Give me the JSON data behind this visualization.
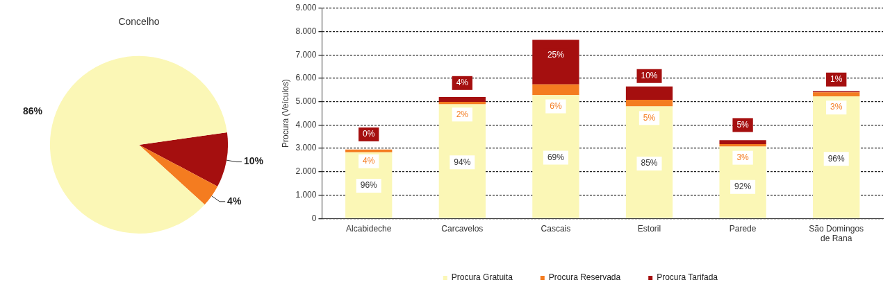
{
  "chart_data": [
    {
      "type": "pie",
      "title": "Concelho",
      "categories": [
        null,
        null,
        null
      ],
      "values": [
        10,
        4,
        86
      ],
      "colors": [
        "#a50f0f",
        "#f47c20",
        "#fbf7b6"
      ],
      "value_labels": [
        "10%",
        "4%",
        "86%"
      ],
      "legend": false
    },
    {
      "type": "bar",
      "stacked": true,
      "ylabel": "Procura (Veículos)",
      "categories": [
        "Alcabideche",
        "Carcavelos",
        "Cascais",
        "Estoril",
        "Parede",
        "São Domingos de Rana"
      ],
      "series": [
        {
          "name": "Procura Gratuita",
          "color": "#fbf7b6",
          "values": [
            2830,
            4890,
            5280,
            4800,
            3080,
            5230
          ]
        },
        {
          "name": "Procura Reservada",
          "color": "#f47c20",
          "values": [
            120,
            100,
            460,
            280,
            100,
            170
          ]
        },
        {
          "name": "Procura Tarifada",
          "color": "#a50f0f",
          "values": [
            0,
            210,
            1910,
            570,
            170,
            50
          ]
        }
      ],
      "annotations": [
        {
          "text": "96%",
          "x": "Alcabideche",
          "y": 1400
        },
        {
          "text": "4%",
          "x": "Alcabideche",
          "y": 2450
        },
        {
          "text": "0%",
          "x": "Alcabideche",
          "y": 3600
        },
        {
          "text": "94%",
          "x": "Carcavelos",
          "y": 2400
        },
        {
          "text": "2%",
          "x": "Carcavelos",
          "y": 4450
        },
        {
          "text": "4%",
          "x": "Carcavelos",
          "y": 5800
        },
        {
          "text": "69%",
          "x": "Cascais",
          "y": 2600
        },
        {
          "text": "6%",
          "x": "Cascais",
          "y": 4800
        },
        {
          "text": "25%",
          "x": "Cascais",
          "y": 7000
        },
        {
          "text": "85%",
          "x": "Estoril",
          "y": 2350
        },
        {
          "text": "5%",
          "x": "Estoril",
          "y": 4300
        },
        {
          "text": "10%",
          "x": "Estoril",
          "y": 6100
        },
        {
          "text": "92%",
          "x": "Parede",
          "y": 1350
        },
        {
          "text": "3%",
          "x": "Parede",
          "y": 2600
        },
        {
          "text": "5%",
          "x": "Parede",
          "y": 4000
        },
        {
          "text": "96%",
          "x": "São Domingos de Rana",
          "y": 2550
        },
        {
          "text": "3%",
          "x": "São Domingos de Rana",
          "y": 4750
        },
        {
          "text": "1%",
          "x": "São Domingos de Rana",
          "y": 5950
        }
      ],
      "ylim": [
        0,
        9000
      ],
      "yticks": [
        {
          "value": 0,
          "label": "0"
        },
        {
          "value": 1000,
          "label": "1.000"
        },
        {
          "value": 2000,
          "label": "2.000"
        },
        {
          "value": 3000,
          "label": "3.000"
        },
        {
          "value": 4000,
          "label": "4.000"
        },
        {
          "value": 5000,
          "label": "5.000"
        },
        {
          "value": 6000,
          "label": "6.000"
        },
        {
          "value": 7000,
          "label": "7.000"
        },
        {
          "value": 8000,
          "label": "8.000"
        },
        {
          "value": 9000,
          "label": "9.000"
        }
      ],
      "grid": "y",
      "legend": "bottom"
    }
  ]
}
